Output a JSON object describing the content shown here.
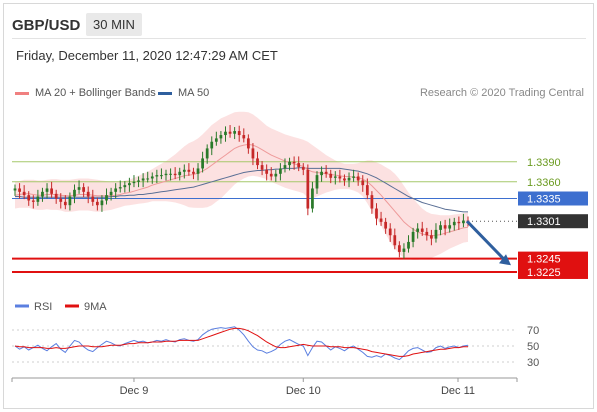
{
  "header": {
    "symbol": "GBP/USD",
    "timeframe": "30 MIN",
    "datetime": "Friday, December 11, 2020 12:47:29 AM CET"
  },
  "legend": {
    "ma20_label": "MA 20 + Bollinger Bands",
    "ma20_color": "#f08080",
    "ma50_label": "MA 50",
    "ma50_color": "#2f5f9e",
    "credit": "Research © 2020 Trading Central"
  },
  "colors": {
    "band_fill": "#fbd9d9",
    "up_candle": "#2a7a2a",
    "down_candle": "#c62828",
    "resistance": "#a6c86b",
    "pivot": "#3d6fcf",
    "support": "#e01010",
    "arrow": "#2f5f9e",
    "rsi": "#5b7fe0",
    "rsi_ma": "#e01010"
  },
  "chart_data": [
    {
      "type": "candlestick",
      "title": "",
      "x_tick_labels": [
        "Dec 9",
        "Dec 10",
        "Dec 11"
      ],
      "ylim": [
        1.3195,
        1.3475
      ],
      "levels": [
        {
          "value": 1.339,
          "label": "1.3390",
          "kind": "resistance"
        },
        {
          "value": 1.336,
          "label": "1.3360",
          "kind": "resistance"
        },
        {
          "value": 1.3335,
          "label": "1.3335",
          "kind": "pivot"
        },
        {
          "value": 1.3301,
          "label": "1.3301",
          "kind": "last"
        },
        {
          "value": 1.3245,
          "label": "1.3245",
          "kind": "support"
        },
        {
          "value": 1.3225,
          "label": "1.3225",
          "kind": "support"
        }
      ],
      "close_series": [
        1.335,
        1.3345,
        1.334,
        1.3332,
        1.333,
        1.3338,
        1.3345,
        1.335,
        1.3342,
        1.3335,
        1.333,
        1.3325,
        1.3338,
        1.3348,
        1.3352,
        1.3345,
        1.3338,
        1.333,
        1.3325,
        1.3332,
        1.334,
        1.3345,
        1.335,
        1.3352,
        1.3355,
        1.3358,
        1.336,
        1.3362,
        1.3365,
        1.3365,
        1.3368,
        1.337,
        1.337,
        1.3372,
        1.3372,
        1.337,
        1.3375,
        1.3378,
        1.3375,
        1.3372,
        1.338,
        1.3395,
        1.341,
        1.342,
        1.3425,
        1.343,
        1.3435,
        1.3432,
        1.3436,
        1.343,
        1.3425,
        1.341,
        1.3395,
        1.3385,
        1.3378,
        1.3372,
        1.3368,
        1.3372,
        1.338,
        1.3385,
        1.339,
        1.3388,
        1.3382,
        1.3378,
        1.332,
        1.335,
        1.337,
        1.3375,
        1.3372,
        1.3366,
        1.3368,
        1.3365,
        1.3362,
        1.3366,
        1.3368,
        1.3362,
        1.3355,
        1.334,
        1.332,
        1.3305,
        1.33,
        1.329,
        1.328,
        1.3265,
        1.3255,
        1.326,
        1.327,
        1.3285,
        1.329,
        1.3285,
        1.328,
        1.3275,
        1.3288,
        1.3295,
        1.329,
        1.3295,
        1.33,
        1.3298,
        1.3302,
        1.3301
      ],
      "ma20_series": [
        1.334,
        1.3341,
        1.3342,
        1.3342,
        1.3341,
        1.334,
        1.334,
        1.3341,
        1.3341,
        1.3341,
        1.334,
        1.3339,
        1.3339,
        1.334,
        1.3341,
        1.3341,
        1.3341,
        1.334,
        1.3339,
        1.3339,
        1.3339,
        1.3339,
        1.334,
        1.3341,
        1.3343,
        1.3344,
        1.3346,
        1.3348,
        1.335,
        1.3352,
        1.3355,
        1.3357,
        1.3359,
        1.3361,
        1.3363,
        1.3365,
        1.3367,
        1.3369,
        1.337,
        1.3371,
        1.3373,
        1.3376,
        1.338,
        1.3385,
        1.339,
        1.3395,
        1.34,
        1.3405,
        1.341,
        1.3413,
        1.3415,
        1.3416,
        1.3415,
        1.3412,
        1.3408,
        1.3404,
        1.34,
        1.3397,
        1.3394,
        1.3391,
        1.3389,
        1.3387,
        1.3385,
        1.3383,
        1.3378,
        1.3375,
        1.3374,
        1.3373,
        1.3372,
        1.3371,
        1.337,
        1.3369,
        1.3368,
        1.3368,
        1.3367,
        1.3366,
        1.3364,
        1.336,
        1.3354,
        1.3347,
        1.334,
        1.3332,
        1.3324,
        1.3316,
        1.3308,
        1.33,
        1.3294,
        1.3289,
        1.3285,
        1.3282,
        1.328,
        1.3279,
        1.328,
        1.3281,
        1.3283,
        1.3285,
        1.3287,
        1.3289,
        1.3291,
        1.3292
      ],
      "ma50_series": [
        1.3338,
        1.3338,
        1.3337,
        1.3337,
        1.3337,
        1.3337,
        1.3337,
        1.3337,
        1.3337,
        1.3337,
        1.3337,
        1.3337,
        1.3337,
        1.3337,
        1.3337,
        1.3337,
        1.3337,
        1.3337,
        1.3337,
        1.3337,
        1.3337,
        1.3338,
        1.3338,
        1.3339,
        1.3339,
        1.334,
        1.334,
        1.3341,
        1.3341,
        1.3342,
        1.3343,
        1.3344,
        1.3345,
        1.3346,
        1.3347,
        1.3348,
        1.3349,
        1.335,
        1.3351,
        1.3352,
        1.3354,
        1.3356,
        1.3358,
        1.336,
        1.3362,
        1.3364,
        1.3366,
        1.3368,
        1.337,
        1.3372,
        1.3374,
        1.3375,
        1.3376,
        1.3377,
        1.3377,
        1.3378,
        1.3378,
        1.3379,
        1.3379,
        1.338,
        1.338,
        1.338,
        1.3381,
        1.3381,
        1.338,
        1.338,
        1.338,
        1.338,
        1.338,
        1.338,
        1.338,
        1.338,
        1.3379,
        1.3378,
        1.3377,
        1.3376,
        1.3374,
        1.3372,
        1.3369,
        1.3366,
        1.3362,
        1.3358,
        1.3354,
        1.335,
        1.3346,
        1.3342,
        1.3338,
        1.3335,
        1.3332,
        1.3329,
        1.3327,
        1.3325,
        1.3323,
        1.3321,
        1.3319,
        1.3318,
        1.3317,
        1.3316,
        1.3315,
        1.3315
      ],
      "band_width": [
        0.002,
        0.002,
        0.0021,
        0.0021,
        0.0022,
        0.0022,
        0.0022,
        0.0022,
        0.0023,
        0.0023,
        0.0023,
        0.0024,
        0.0024,
        0.0024,
        0.0024,
        0.0024,
        0.0024,
        0.0024,
        0.0024,
        0.0023,
        0.0022,
        0.0021,
        0.002,
        0.0019,
        0.0019,
        0.0019,
        0.002,
        0.0021,
        0.0022,
        0.0023,
        0.0024,
        0.0026,
        0.0028,
        0.003,
        0.0033,
        0.0036,
        0.004,
        0.0044,
        0.0048,
        0.005,
        0.0052,
        0.0055,
        0.0058,
        0.006,
        0.006,
        0.006,
        0.0058,
        0.0056,
        0.0054,
        0.0052,
        0.005,
        0.0048,
        0.0046,
        0.0044,
        0.0042,
        0.004,
        0.004,
        0.004,
        0.004,
        0.004,
        0.004,
        0.004,
        0.004,
        0.004,
        0.0042,
        0.004,
        0.0036,
        0.0032,
        0.0028,
        0.0025,
        0.0022,
        0.002,
        0.0019,
        0.0019,
        0.002,
        0.0022,
        0.0026,
        0.0032,
        0.0038,
        0.0042,
        0.0046,
        0.005,
        0.0054,
        0.0056,
        0.0056,
        0.0054,
        0.005,
        0.0046,
        0.0042,
        0.0038,
        0.0035,
        0.0033,
        0.0031,
        0.0029,
        0.0027,
        0.0025,
        0.0024,
        0.0023,
        0.0022,
        0.0022
      ],
      "forecast": {
        "from": 1.3301,
        "to": 1.3235
      }
    },
    {
      "type": "line",
      "title": "",
      "series_names": [
        "RSI",
        "9MA"
      ],
      "y_tick_labels": [
        "70",
        "50",
        "30"
      ],
      "ylim": [
        20,
        80
      ],
      "rsi_series": [
        50,
        46,
        49,
        45,
        48,
        51,
        47,
        44,
        49,
        53,
        46,
        42,
        50,
        57,
        55,
        49,
        45,
        43,
        48,
        52,
        56,
        54,
        51,
        50,
        53,
        55,
        57,
        55,
        56,
        54,
        55,
        57,
        56,
        58,
        56,
        55,
        58,
        59,
        57,
        56,
        58,
        64,
        68,
        71,
        72,
        73,
        72,
        73,
        74,
        70,
        64,
        56,
        49,
        45,
        44,
        41,
        43,
        46,
        52,
        56,
        58,
        55,
        52,
        50,
        38,
        48,
        56,
        55,
        50,
        45,
        49,
        47,
        44,
        48,
        50,
        46,
        42,
        37,
        36,
        38,
        36,
        40,
        38,
        35,
        33,
        38,
        44,
        47,
        48,
        45,
        42,
        43,
        48,
        50,
        47,
        49,
        50,
        48,
        50,
        51
      ],
      "rsi_ma_series": [
        50,
        49,
        49,
        48,
        48,
        48,
        48,
        47,
        47,
        48,
        47,
        47,
        48,
        49,
        50,
        50,
        50,
        49,
        49,
        49,
        50,
        51,
        51,
        51,
        52,
        53,
        53,
        54,
        54,
        54,
        55,
        55,
        55,
        56,
        56,
        56,
        57,
        57,
        57,
        57,
        57,
        59,
        61,
        63,
        65,
        67,
        69,
        71,
        72,
        72,
        71,
        69,
        66,
        63,
        59,
        55,
        52,
        49,
        48,
        48,
        49,
        50,
        51,
        52,
        51,
        50,
        50,
        50,
        50,
        49,
        49,
        49,
        48,
        48,
        48,
        47,
        46,
        45,
        43,
        42,
        41,
        40,
        39,
        38,
        37,
        37,
        38,
        40,
        41,
        42,
        43,
        44,
        45,
        46,
        46,
        47,
        48,
        48,
        49,
        49
      ]
    }
  ]
}
